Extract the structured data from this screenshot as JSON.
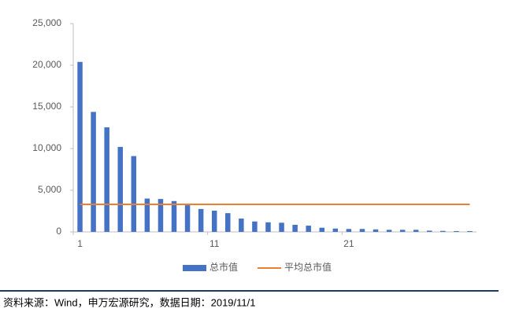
{
  "chart_data": {
    "type": "bar",
    "categories": [
      "1",
      null,
      null,
      null,
      null,
      null,
      null,
      null,
      null,
      null,
      "11",
      null,
      null,
      null,
      null,
      null,
      null,
      null,
      null,
      null,
      "21",
      null,
      null,
      null,
      null,
      null,
      null,
      null,
      null,
      null
    ],
    "series": [
      {
        "name": "总市值",
        "type": "bar",
        "color": "#4472c4",
        "values": [
          20400,
          14400,
          12550,
          10200,
          9100,
          4000,
          3950,
          3700,
          3200,
          2750,
          2550,
          2250,
          1600,
          1250,
          1150,
          1100,
          850,
          750,
          500,
          400,
          350,
          350,
          300,
          250,
          250,
          250,
          150,
          120,
          100,
          100
        ]
      },
      {
        "name": "平均总市值",
        "type": "line",
        "color": "#ed7d31",
        "values": [
          3300,
          3300,
          3300,
          3300,
          3300,
          3300,
          3300,
          3300,
          3300,
          3300,
          3300,
          3300,
          3300,
          3300,
          3300,
          3300,
          3300,
          3300,
          3300,
          3300,
          3300,
          3300,
          3300,
          3300,
          3300,
          3300,
          3300,
          3300,
          3300,
          3300
        ]
      }
    ],
    "ylim": [
      0,
      25000
    ],
    "yticks": [
      0,
      {
        "value": 5000,
        "label": "5,000"
      },
      {
        "value": 10000,
        "label": "10,000"
      },
      {
        "value": 15000,
        "label": "15,000"
      },
      {
        "value": 20000,
        "label": "20,000"
      },
      {
        "value": 25000,
        "label": "25,000"
      }
    ],
    "grid": false,
    "legend": "bottom",
    "source": "资料来源：Wind，申万宏源研究，数据日期：2019/11/1"
  }
}
